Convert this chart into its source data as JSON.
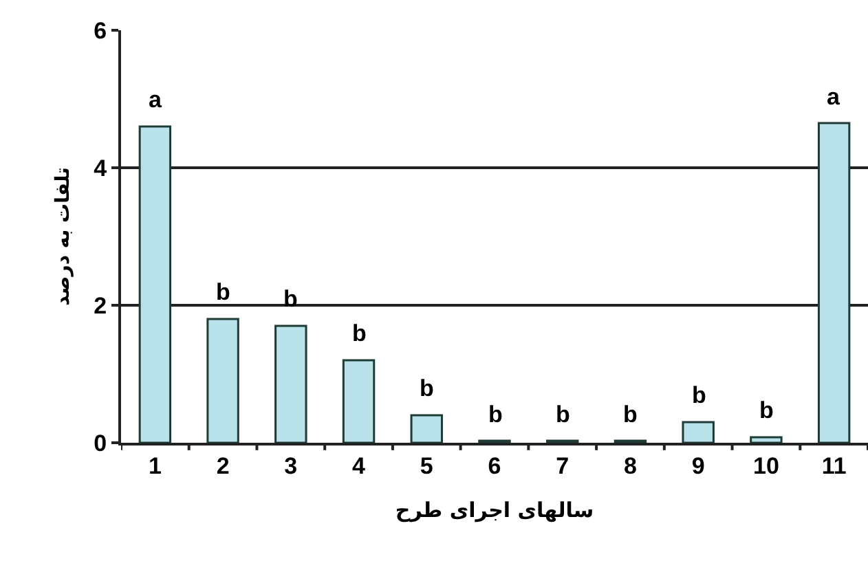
{
  "chart_data": {
    "type": "bar",
    "xlabel": "سالهای اجرای طرح",
    "ylabel": "تلفات به درصد",
    "categories": [
      "1",
      "2",
      "3",
      "4",
      "5",
      "6",
      "7",
      "8",
      "9",
      "10",
      "11"
    ],
    "values": [
      4.6,
      1.8,
      1.7,
      1.2,
      0.4,
      0.03,
      0.03,
      0.03,
      0.3,
      0.08,
      4.65
    ],
    "color": "#b9e2eb",
    "ylim": [
      0,
      6
    ],
    "yticks": [
      0,
      2,
      4,
      6
    ],
    "grid": "y",
    "annotations": [
      {
        "text": "a",
        "x": "1",
        "y": 4.6
      },
      {
        "text": "b",
        "x": "2",
        "y": 1.8
      },
      {
        "text": "b",
        "x": "3",
        "y": 1.7
      },
      {
        "text": "b",
        "x": "4",
        "y": 1.2
      },
      {
        "text": "b",
        "x": "5",
        "y": 0.4
      },
      {
        "text": "b",
        "x": "6",
        "y": 0.03
      },
      {
        "text": "b",
        "x": "7",
        "y": 0.03
      },
      {
        "text": "b",
        "x": "8",
        "y": 0.03
      },
      {
        "text": "b",
        "x": "9",
        "y": 0.3
      },
      {
        "text": "b",
        "x": "10",
        "y": 0.08
      },
      {
        "text": "a",
        "x": "11",
        "y": 4.65
      }
    ]
  }
}
